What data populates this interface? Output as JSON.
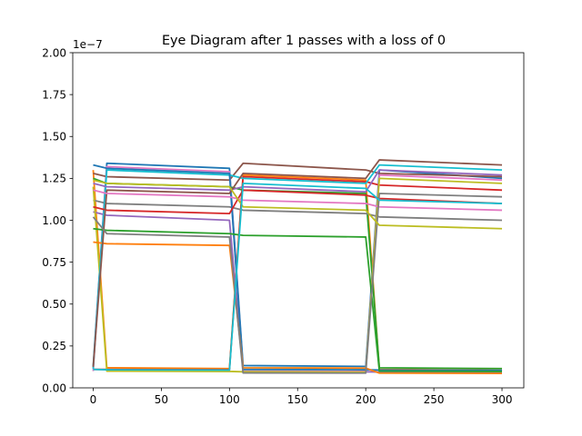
{
  "chart_data": {
    "type": "line",
    "title": "Eye Diagram after 1 passes with a loss of 0",
    "xlabel": "",
    "ylabel": "",
    "y_offset_text": "1e−7",
    "xlim": [
      -15,
      316
    ],
    "ylim": [
      0,
      2e-07
    ],
    "x_ticks": [
      0,
      50,
      100,
      150,
      200,
      250,
      300
    ],
    "x_tick_labels": [
      "0",
      "50",
      "100",
      "150",
      "200",
      "250",
      "300"
    ],
    "y_ticks": [
      0,
      2.5e-08,
      5e-08,
      7.5e-08,
      1e-07,
      1.25e-07,
      1.5e-07,
      1.75e-07,
      2e-07
    ],
    "y_tick_labels": [
      "0.00",
      "0.25",
      "0.50",
      "0.75",
      "1.00",
      "1.25",
      "1.50",
      "1.75",
      "2.00"
    ],
    "grid": false,
    "legend": "none",
    "colors": [
      "#1f77b4",
      "#ff7f0e",
      "#2ca02c",
      "#d62728",
      "#9467bd",
      "#8c564b",
      "#e377c2",
      "#7f7f7f",
      "#bcbd22",
      "#17becf"
    ],
    "series": [
      {
        "x": [
          0,
          10,
          100,
          110,
          200,
          210,
          300
        ],
        "values": [
          1.3e-08,
          1.34e-07,
          1.31e-07,
          1.33e-08,
          1.28e-08,
          1.3e-07,
          1.25e-07
        ]
      },
      {
        "x": [
          0,
          10,
          100,
          110,
          200,
          210,
          300
        ],
        "values": [
          1.3e-07,
          1.2e-08,
          1.15e-08,
          1.27e-07,
          1.24e-07,
          1.1e-08,
          1.05e-08
        ]
      },
      {
        "x": [
          0,
          10,
          100,
          110,
          200,
          210,
          300
        ],
        "values": [
          1.25e-07,
          1.22e-07,
          1.2e-07,
          1.18e-07,
          1.16e-07,
          1.2e-08,
          1.15e-08
        ]
      },
      {
        "x": [
          0,
          10,
          100,
          110,
          200,
          210,
          300
        ],
        "values": [
          1.1e-08,
          1.1e-08,
          1.08e-08,
          1.26e-07,
          1.23e-07,
          1.21e-07,
          1.18e-07
        ]
      },
      {
        "x": [
          0,
          10,
          100,
          110,
          200,
          210,
          300
        ],
        "values": [
          1.05e-07,
          1.03e-07,
          1e-07,
          9.8e-09,
          9.6e-09,
          9.4e-09,
          9.2e-09
        ]
      },
      {
        "x": [
          0,
          10,
          100,
          110,
          200,
          210,
          300
        ],
        "values": [
          1.28e-07,
          1.26e-07,
          1.24e-07,
          1.34e-07,
          1.3e-07,
          1.28e-07,
          1.26e-07
        ]
      },
      {
        "x": [
          0,
          10,
          100,
          110,
          200,
          210,
          300
        ],
        "values": [
          1e-08,
          1.32e-07,
          1.29e-07,
          1e-08,
          9.8e-09,
          1.27e-07,
          1.24e-07
        ]
      },
      {
        "x": [
          0,
          10,
          100,
          110,
          200,
          210,
          300
        ],
        "values": [
          1.12e-07,
          1.1e-07,
          1.08e-07,
          1.06e-07,
          1.04e-07,
          1.02e-07,
          1e-07
        ]
      },
      {
        "x": [
          0,
          10,
          100,
          110,
          200,
          210,
          300
        ],
        "values": [
          1.2e-07,
          1e-08,
          9.8e-09,
          9.6e-09,
          9.4e-09,
          1.25e-07,
          1.22e-07
        ]
      },
      {
        "x": [
          0,
          10,
          100,
          110,
          200,
          210,
          300
        ],
        "values": [
          1.15e-08,
          1.3e-07,
          1.27e-07,
          1.25e-07,
          1.22e-07,
          1.33e-07,
          1.3e-07
        ]
      },
      {
        "x": [
          0,
          10,
          100,
          110,
          200,
          210,
          300
        ],
        "values": [
          1.33e-07,
          1.31e-07,
          1.28e-07,
          1.1e-08,
          1.08e-08,
          1.06e-08,
          1.04e-08
        ]
      },
      {
        "x": [
          0,
          10,
          100,
          110,
          200,
          210,
          300
        ],
        "values": [
          8.7e-08,
          8.6e-08,
          8.5e-08,
          1.2e-08,
          1.18e-08,
          8.8e-09,
          8.6e-09
        ]
      },
      {
        "x": [
          0,
          10,
          100,
          110,
          200,
          210,
          300
        ],
        "values": [
          9.5e-08,
          9.4e-08,
          9.2e-08,
          9.1e-08,
          9e-08,
          1e-08,
          9.8e-09
        ]
      },
      {
        "x": [
          0,
          10,
          100,
          110,
          200,
          210,
          300
        ],
        "values": [
          1.08e-07,
          1.06e-07,
          1.04e-07,
          1.18e-07,
          1.15e-07,
          1.13e-07,
          1.1e-07
        ]
      },
      {
        "x": [
          0,
          10,
          100,
          110,
          200,
          210,
          300
        ],
        "values": [
          1.22e-07,
          1.2e-07,
          1.18e-07,
          1.2e-07,
          1.17e-07,
          1.3e-07,
          1.27e-07
        ]
      },
      {
        "x": [
          0,
          10,
          100,
          110,
          200,
          210,
          300
        ],
        "values": [
          1.25e-08,
          1.18e-07,
          1.16e-07,
          1.28e-07,
          1.25e-07,
          1.36e-07,
          1.33e-07
        ]
      },
      {
        "x": [
          0,
          10,
          100,
          110,
          200,
          210,
          300
        ],
        "values": [
          1.18e-07,
          1.16e-07,
          1.14e-07,
          1.12e-07,
          1.1e-07,
          1.08e-07,
          1.06e-07
        ]
      },
      {
        "x": [
          0,
          10,
          100,
          110,
          200,
          210,
          300
        ],
        "values": [
          1.02e-07,
          9.2e-08,
          9e-08,
          8.9e-09,
          8.8e-09,
          1.16e-07,
          1.14e-07
        ]
      },
      {
        "x": [
          0,
          10,
          100,
          110,
          200,
          210,
          300
        ],
        "values": [
          1.24e-07,
          1.22e-07,
          1.2e-07,
          1.08e-07,
          1.06e-07,
          9.7e-08,
          9.5e-08
        ]
      },
      {
        "x": [
          0,
          10,
          100,
          110,
          200,
          210,
          300
        ],
        "values": [
          1.1e-08,
          1.08e-08,
          1.06e-08,
          1.22e-07,
          1.19e-07,
          1.12e-07,
          1.1e-07
        ]
      }
    ]
  }
}
